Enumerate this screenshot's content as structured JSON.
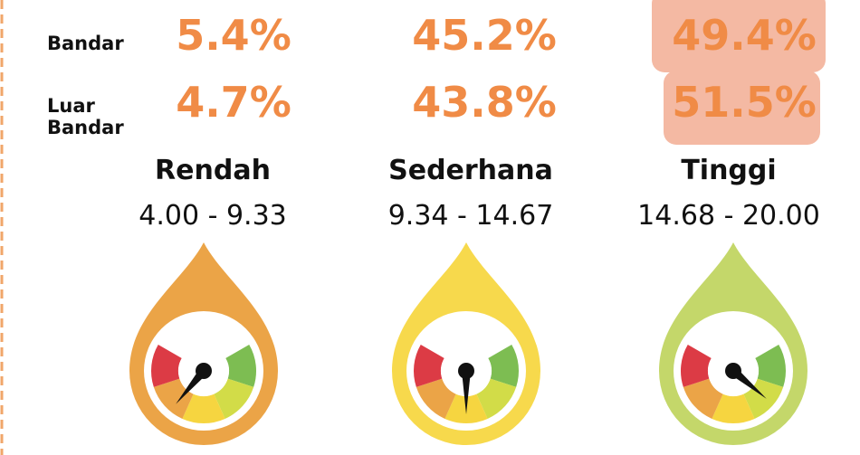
{
  "rows": [
    {
      "label": "Bandar",
      "values": [
        "5.4%",
        "45.2%",
        "49.4%"
      ]
    },
    {
      "label": "Luar Bandar",
      "values": [
        "4.7%",
        "43.8%",
        "51.5%"
      ]
    }
  ],
  "columns": [
    {
      "name": "Rendah",
      "range": "4.00 - 9.33"
    },
    {
      "name": "Sederhana",
      "range": "9.34 - 14.67"
    },
    {
      "name": "Tinggi",
      "range": "14.68 - 20.00"
    }
  ]
}
